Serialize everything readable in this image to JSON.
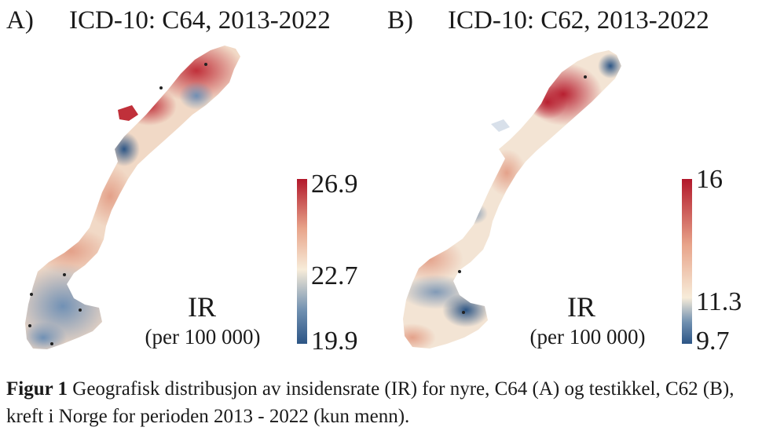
{
  "panels": [
    {
      "letter": "A)",
      "title": "ICD-10: C64, 2013-2022",
      "legend": {
        "max": "26.9",
        "mid": "22.7",
        "min": "19.9",
        "colors": [
          "#b2182b",
          "#e8a48a",
          "#f7ecd9",
          "#6f8fb0",
          "#2c5585"
        ]
      },
      "ir_label": "IR",
      "ir_unit": "(per 100 000)"
    },
    {
      "letter": "B)",
      "title": "ICD-10: C62, 2013-2022",
      "legend": {
        "max": "16",
        "mid": "11.3",
        "min": "9.7",
        "colors": [
          "#b2182b",
          "#e8a48a",
          "#f7ecd9",
          "#6f8fb0",
          "#2c5585"
        ]
      },
      "ir_label": "IR",
      "ir_unit": "(per 100 000)"
    }
  ],
  "caption": {
    "label": "Figur 1",
    "text": " Geografisk distribusjon av insidensrate (IR) for nyre,  C64 (A) og testikkel, C62 (B), kreft i Norge for perioden 2013 - 2022 (kun menn)."
  }
}
